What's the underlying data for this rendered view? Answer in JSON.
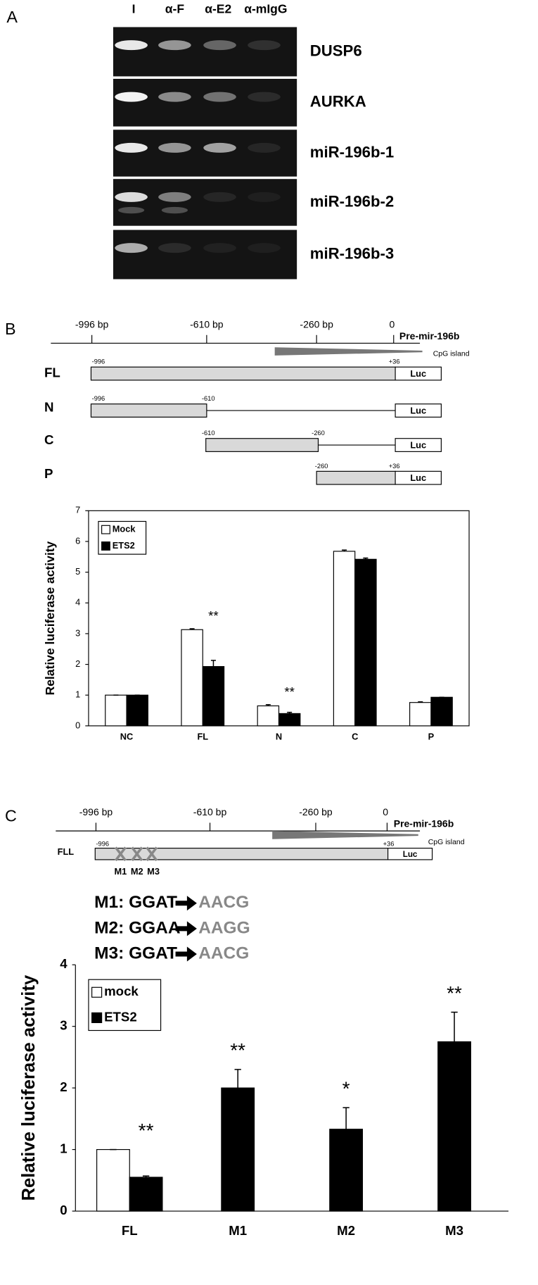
{
  "panel_labels": [
    "A",
    "B",
    "C"
  ],
  "gel": {
    "lanes": [
      "I",
      "α-F",
      "α-E2",
      "α-mIgG"
    ],
    "genes": [
      "DUSP6",
      "AURKA",
      "miR-196b-1",
      "miR-196b-2",
      "miR-196b-3"
    ]
  },
  "promoter_map_b": {
    "positions": [
      "-996 bp",
      "-610 bp",
      "-260 bp",
      "0"
    ],
    "gene": "Pre-mir-196b",
    "cpg": "CpG island",
    "constructs": [
      {
        "name": "FL",
        "start": "-996",
        "end": "+36",
        "reporter": "Luc"
      },
      {
        "name": "N",
        "start": "-996",
        "end": "-610",
        "reporter": "Luc"
      },
      {
        "name": "C",
        "start": "-610",
        "end": "-260",
        "reporter": "Luc"
      },
      {
        "name": "P",
        "start": "-260",
        "end": "+36",
        "reporter": "Luc"
      }
    ]
  },
  "promoter_map_c": {
    "positions": [
      "-996 bp",
      "-610 bp",
      "-260 bp",
      "0"
    ],
    "gene": "Pre-mir-196b",
    "cpg": "CpG island",
    "construct": {
      "name": "FLL",
      "start": "-996",
      "end": "+36",
      "reporter": "Luc",
      "sites": [
        "M1",
        "M2",
        "M3"
      ]
    }
  },
  "mutations": [
    {
      "label": "M1:",
      "from": "GGAT",
      "to": "AACG"
    },
    {
      "label": "M2:",
      "from": "GGAA",
      "to": "AAGG"
    },
    {
      "label": "M3:",
      "from": "GGAT",
      "to": "AACG"
    }
  ],
  "chart_data": [
    {
      "type": "bar",
      "y_label": "Relative luciferase activity",
      "categories": [
        "NC",
        "FL",
        "N",
        "C",
        "P"
      ],
      "series": [
        {
          "name": "Mock",
          "color": "#ffffff",
          "values": [
            1,
            3.13,
            0.65,
            5.68,
            0.76
          ],
          "errors": [
            0,
            0.03,
            0.04,
            0.04,
            0.02
          ]
        },
        {
          "name": "ETS2",
          "color": "#000000",
          "values": [
            1,
            1.93,
            0.4,
            5.42,
            0.93
          ],
          "errors": [
            0,
            0.2,
            0.04,
            0.04,
            0
          ]
        }
      ],
      "annotations": [
        {
          "text": "**",
          "category": 1
        },
        {
          "text": "**",
          "category": 2
        }
      ],
      "ylim": [
        0,
        7
      ],
      "yticks": [
        0,
        1,
        2,
        3,
        4,
        5,
        6,
        7
      ],
      "legend": "top-left"
    },
    {
      "type": "bar",
      "y_label": "Relative luciferase activity",
      "categories": [
        "FL",
        "M1",
        "M2",
        "M3"
      ],
      "series": [
        {
          "name": "mock",
          "color": "#ffffff",
          "values": [
            1,
            null,
            null,
            null
          ],
          "errors": [
            0,
            null,
            null,
            null
          ]
        },
        {
          "name": "ETS2",
          "color": "#000000",
          "values": [
            0.55,
            2.0,
            1.33,
            2.75
          ],
          "errors": [
            0.02,
            0.3,
            0.35,
            0.48
          ]
        }
      ],
      "annotations": [
        {
          "text": "**",
          "category": 0
        },
        {
          "text": "**",
          "category": 1
        },
        {
          "text": "*",
          "category": 2
        },
        {
          "text": "**",
          "category": 3
        }
      ],
      "ylim": [
        0,
        4
      ],
      "yticks": [
        0,
        1,
        2,
        3,
        4
      ],
      "legend": "top-left"
    }
  ]
}
